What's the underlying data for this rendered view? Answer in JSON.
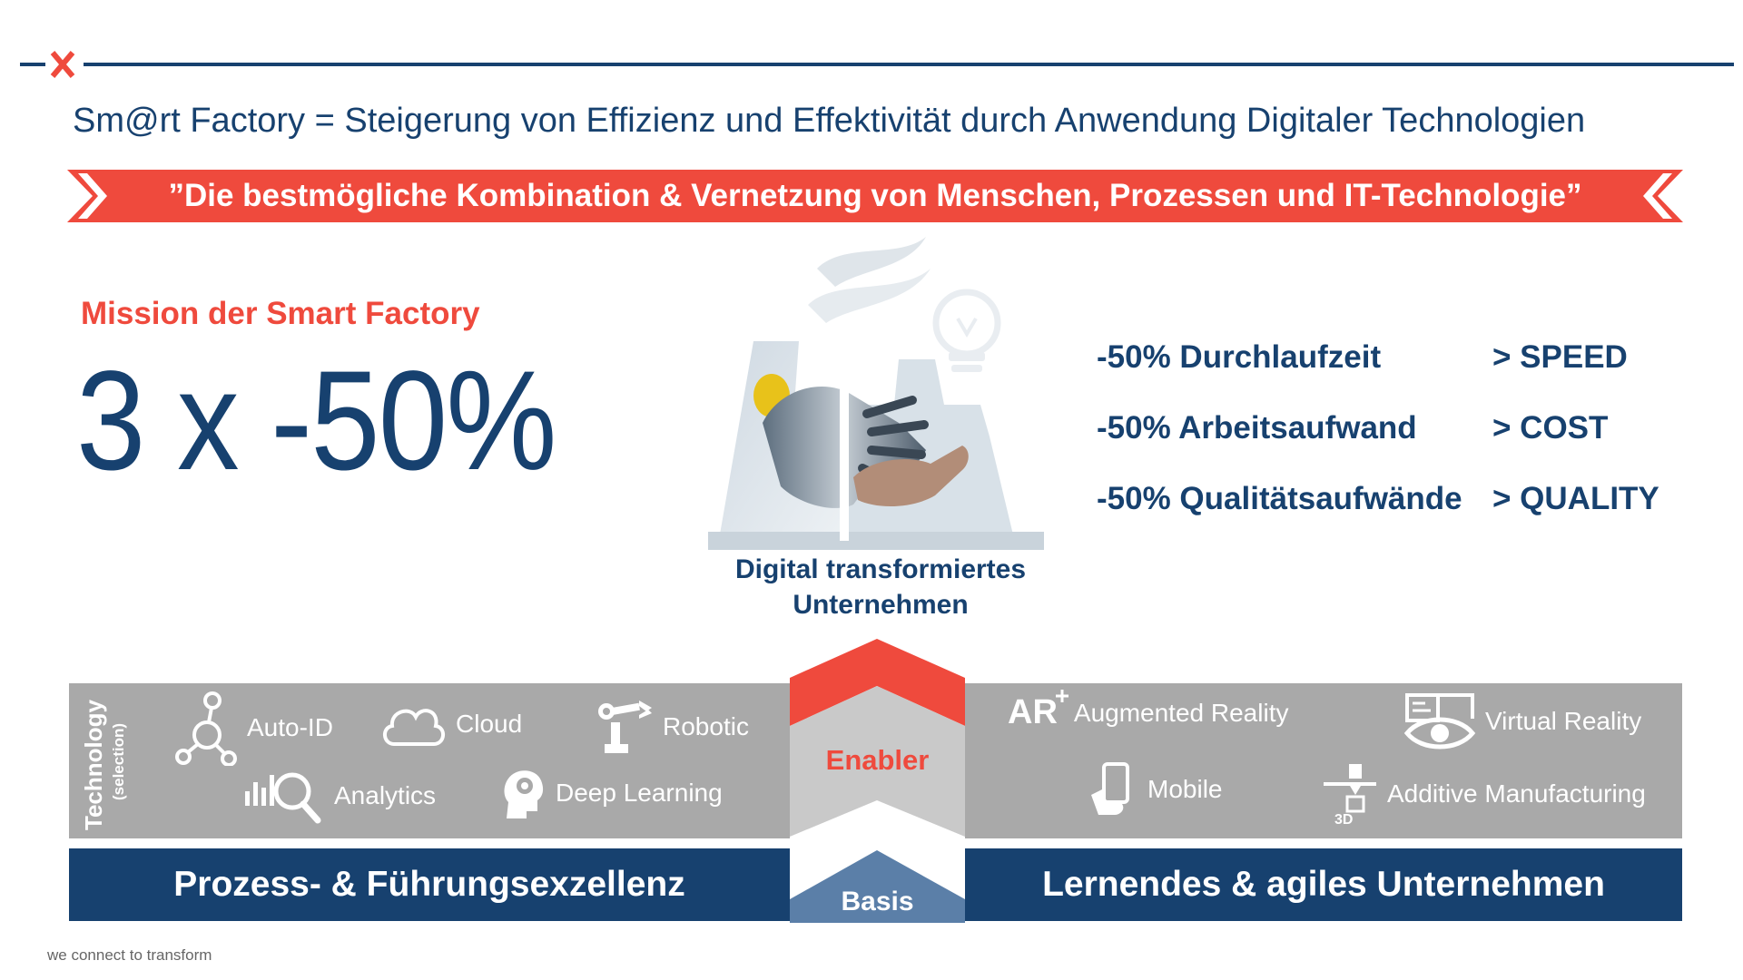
{
  "title": "Sm@rt Factory = Steigerung von Effizienz und Effektivität durch Anwendung Digitaler Technologien",
  "banner": "”Die bestmögliche Kombination & Vernetzung von Menschen, Prozessen und IT-Technologie”",
  "mission": {
    "label": "Mission der Smart Factory",
    "value": "3 x -50%"
  },
  "factory_label_line1": "Digital transformiertes",
  "factory_label_line2": "Unternehmen",
  "metrics": [
    {
      "label": "-50% Durchlaufzeit",
      "target": "> SPEED"
    },
    {
      "label": "-50% Arbeitsaufwand",
      "target": "> COST"
    },
    {
      "label": "-50% Qualitätsaufwände",
      "target": "> QUALITY"
    }
  ],
  "technology": {
    "label": "Technology",
    "sublabel": "(selection)",
    "items": {
      "auto_id": "Auto-ID",
      "cloud": "Cloud",
      "robotic": "Robotic",
      "analytics": "Analytics",
      "deep_learning": "Deep Learning",
      "ar_badge": "AR",
      "ar": "Augmented Reality",
      "vr": "Virtual Reality",
      "mobile": "Mobile",
      "additive": "Additive Manufacturing",
      "additive_badge": "3D"
    }
  },
  "enabler": "Enabler",
  "basis": "Basis",
  "pillars": {
    "left": "Prozess- & Führungsexzellenz",
    "right": "Lernendes & agiles Unternehmen"
  },
  "footer": "we connect to transform",
  "colors": {
    "navy": "#17416f",
    "red": "#ef4a3d",
    "gray": "#a9a9a9"
  }
}
